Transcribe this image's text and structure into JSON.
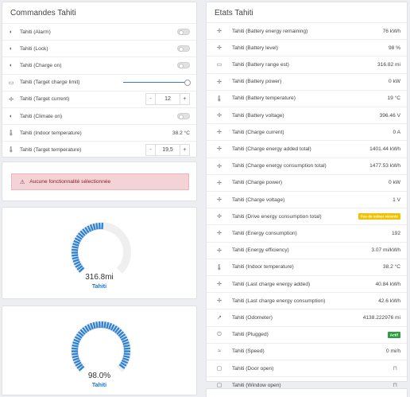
{
  "controls": {
    "title": "Commandes Tahiti",
    "rows": [
      {
        "label": "Tahiti (Alarm)",
        "icon": "toggle-icon",
        "type": "toggle"
      },
      {
        "label": "Tahiti (Lock)",
        "icon": "toggle-icon",
        "type": "toggle"
      },
      {
        "label": "Tahiti (Charge on)",
        "icon": "toggle-icon",
        "type": "toggle"
      },
      {
        "label": "Tahiti (Target charge limit)",
        "icon": "battery-icon",
        "type": "slider"
      },
      {
        "label": "Tahiti (Target current)",
        "icon": "cog-icon",
        "type": "stepper",
        "value": "12",
        "minus": "-",
        "plus": "+"
      },
      {
        "label": "Tahiti (Climate on)",
        "icon": "toggle-icon",
        "type": "toggle"
      },
      {
        "label": "Tahiti (Indoor temperature)",
        "icon": "thermometer-icon",
        "type": "value",
        "value": "38.2 °C"
      },
      {
        "label": "Tahiti (Target temperature)",
        "icon": "thermometer-icon",
        "type": "stepper",
        "value": "19,5",
        "minus": "-",
        "plus": "+"
      }
    ]
  },
  "alert": {
    "text": "Aucune fonctionnalité sélectionnée",
    "icon": "warning-icon"
  },
  "gauges": [
    {
      "value": "316.8mi",
      "name": "Tahiti",
      "fraction": 0.52,
      "color": "#2e82d6"
    },
    {
      "value": "98.0%",
      "name": "Tahiti",
      "fraction": 0.98,
      "color": "#2e82d6"
    }
  ],
  "states": {
    "title": "Etats Tahiti",
    "rows": [
      {
        "label": "Tahiti (Battery energy remaining)",
        "icon": "cog-icon",
        "value": "76 kWh"
      },
      {
        "label": "Tahiti (Battery level)",
        "icon": "cog-icon",
        "value": "98 %"
      },
      {
        "label": "Tahiti (Battery range est)",
        "icon": "battery-icon",
        "value": "316.82 mi"
      },
      {
        "label": "Tahiti (Battery power)",
        "icon": "cog-icon",
        "value": "0 kW"
      },
      {
        "label": "Tahiti (Battery temperature)",
        "icon": "thermometer-icon",
        "value": "19 °C"
      },
      {
        "label": "Tahiti (Battery voltage)",
        "icon": "cog-icon",
        "value": "396.46 V"
      },
      {
        "label": "Tahiti (Charge current)",
        "icon": "cog-icon",
        "value": "0 A"
      },
      {
        "label": "Tahiti (Charge energy added total)",
        "icon": "cog-icon",
        "value": "1401.44 kWh"
      },
      {
        "label": "Tahiti (Charge energy consumption total)",
        "icon": "cog-icon",
        "value": "1477.53 kWh"
      },
      {
        "label": "Tahiti (Charge power)",
        "icon": "cog-icon",
        "value": "0 kW"
      },
      {
        "label": "Tahiti (Charge voltage)",
        "icon": "cog-icon",
        "value": "1 V"
      },
      {
        "label": "Tahiti (Drive energy consumption total)",
        "icon": "cog-icon",
        "badge": "Pas de valeur récente",
        "badge_color": "#f2c200"
      },
      {
        "label": "Tahiti (Energy consumption)",
        "icon": "cog-icon",
        "value": "192"
      },
      {
        "label": "Tahiti (Energy efficiency)",
        "icon": "cog-icon",
        "value": "3.07 mi/kWh"
      },
      {
        "label": "Tahiti (Indoor temperature)",
        "icon": "thermometer-icon",
        "value": "38.2 °C"
      },
      {
        "label": "Tahiti (Last charge energy added)",
        "icon": "cog-icon",
        "value": "40.84 kWh"
      },
      {
        "label": "Tahiti (Last charge energy consumption)",
        "icon": "cog-icon",
        "value": "42.6 kWh"
      },
      {
        "label": "Tahiti (Odometer)",
        "icon": "trend-icon",
        "value": "4138.222976 mi"
      },
      {
        "label": "Tahiti (Plugged)",
        "icon": "power-icon",
        "badge": "Actif",
        "badge_color": "#2e9e3f"
      },
      {
        "label": "Tahiti (Speed)",
        "icon": "speed-icon",
        "value": "0 mi/h"
      },
      {
        "label": "Tahiti (Door open)",
        "icon": "door-icon",
        "lock_icon": "lock-icon"
      },
      {
        "label": "Tahiti (Window open)",
        "icon": "window-icon",
        "lock_icon": "lock-icon"
      }
    ]
  }
}
